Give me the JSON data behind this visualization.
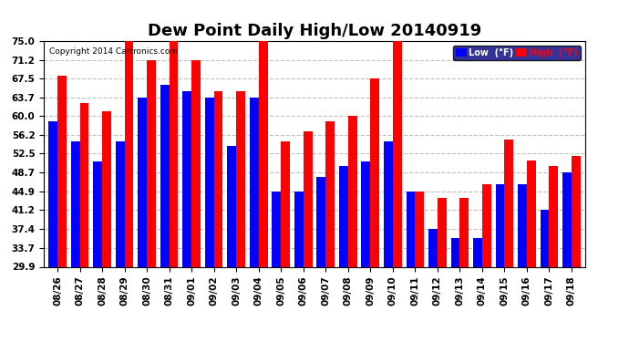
{
  "title": "Dew Point Daily High/Low 20140919",
  "copyright": "Copyright 2014 Cartronics.com",
  "dates": [
    "08/26",
    "08/27",
    "08/28",
    "08/29",
    "08/30",
    "08/31",
    "09/01",
    "09/02",
    "09/03",
    "09/04",
    "09/05",
    "09/06",
    "09/07",
    "09/08",
    "09/09",
    "09/10",
    "09/11",
    "09/12",
    "09/13",
    "09/14",
    "09/15",
    "09/16",
    "09/17",
    "09/18"
  ],
  "low": [
    59.0,
    55.0,
    51.0,
    55.0,
    63.7,
    66.2,
    65.0,
    63.7,
    54.0,
    63.7,
    44.9,
    44.9,
    47.8,
    50.0,
    51.0,
    55.0,
    44.9,
    37.4,
    35.6,
    35.6,
    46.4,
    46.4,
    41.2,
    48.7
  ],
  "high": [
    68.0,
    62.6,
    61.0,
    77.0,
    71.2,
    77.0,
    71.2,
    65.0,
    65.0,
    77.0,
    55.0,
    57.0,
    59.0,
    60.0,
    67.5,
    75.0,
    44.9,
    43.7,
    43.7,
    46.4,
    55.4,
    51.1,
    50.0,
    52.0
  ],
  "ylim_min": 29.9,
  "ylim_max": 75.0,
  "yticks": [
    29.9,
    33.7,
    37.4,
    41.2,
    44.9,
    48.7,
    52.5,
    56.2,
    60.0,
    63.7,
    67.5,
    71.2,
    75.0
  ],
  "bar_color_low": "#0000FF",
  "bar_color_high": "#FF0000",
  "bg_color": "#FFFFFF",
  "grid_color": "#C0C0C0",
  "title_fontsize": 13,
  "legend_low_label": "Low  (°F)",
  "legend_high_label": "High  (°F)"
}
